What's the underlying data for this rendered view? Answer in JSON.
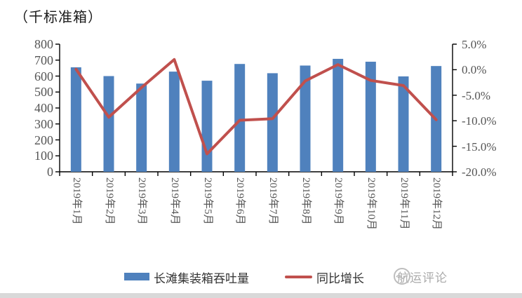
{
  "title": "（千标准箱）",
  "legend": {
    "bar_label": "长滩集装箱吞吐量",
    "line_label": "同比增长"
  },
  "watermark": {
    "text": "航运评论"
  },
  "colors": {
    "bar": "#4F81BD",
    "line": "#C0504D",
    "axis": "#000000",
    "tick_text": "#555555"
  },
  "chart_data": {
    "type": "bar+line combo",
    "title": "（千标准箱）",
    "categories": [
      "2019年1月",
      "2019年2月",
      "2019年3月",
      "2019年4月",
      "2019年5月",
      "2019年6月",
      "2019年7月",
      "2019年8月",
      "2019年9月",
      "2019年10月",
      "2019年11月",
      "2019年12月"
    ],
    "series": [
      {
        "name": "长滩集装箱吞吐量",
        "type": "bar",
        "axis": "left",
        "color": "#4F81BD",
        "unit": "千标准箱",
        "values": [
          655,
          600,
          553,
          628,
          571,
          676,
          618,
          666,
          708,
          690,
          598,
          663
        ]
      },
      {
        "name": "同比增长",
        "type": "line",
        "axis": "right",
        "color": "#C0504D",
        "unit": "%",
        "values": [
          0.1,
          -9.3,
          -3.5,
          2.0,
          -16.5,
          -9.9,
          -9.6,
          -2.2,
          1.0,
          -2.1,
          -3.1,
          -9.8
        ]
      }
    ],
    "left_axis": {
      "label": "（千标准箱）",
      "min": 0,
      "max": 800,
      "step": 100,
      "ticks": [
        "800",
        "700",
        "600",
        "500",
        "400",
        "300",
        "200",
        "100",
        "0"
      ]
    },
    "right_axis": {
      "min": -20,
      "max": 5,
      "step": 5,
      "ticks": [
        "5.0%",
        "0.0%",
        "-5.0%",
        "-10.0%",
        "-15.0%",
        "-20.0%"
      ]
    },
    "grid": false,
    "legend_position": "bottom"
  }
}
